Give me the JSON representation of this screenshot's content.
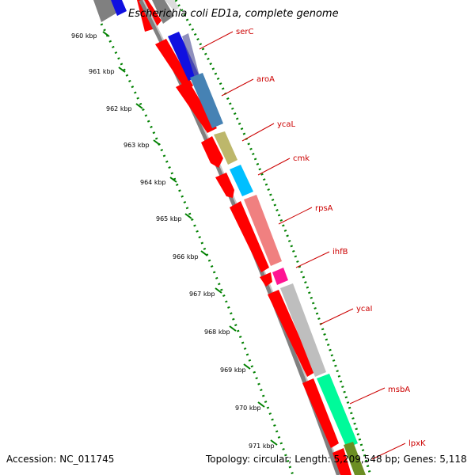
{
  "title": "Escherichia coli ED1a, complete genome",
  "accession": "Accession: NC_011745",
  "topology": "Topology: circular; Length: 5,209,548 bp; Genes: 5,118",
  "ticks": [
    "960 kbp",
    "961 kbp",
    "962 kbp",
    "963 kbp",
    "964 kbp",
    "965 kbp",
    "966 kbp",
    "967 kbp",
    "968 kbp",
    "969 kbp",
    "970 kbp",
    "971 kbp"
  ],
  "genes": [
    {
      "name": "serC",
      "color": "#ff0000",
      "cog_color": "#1010e0"
    },
    {
      "name": "aroA",
      "color": "#ff0000",
      "cog_color": "#4682b4"
    },
    {
      "name": "ycaL",
      "color": "#ff0000",
      "cog_color": "#bdb76b"
    },
    {
      "name": "cmk",
      "color": "#ff0000",
      "cog_color": "#00bfff"
    },
    {
      "name": "rpsA",
      "color": "#ff0000",
      "cog_color": "#f08080"
    },
    {
      "name": "ihfB",
      "color": "#ff0000",
      "cog_color": "#ff1493"
    },
    {
      "name": "ycaI",
      "color": "#ff0000",
      "cog_color": "#bebebe"
    },
    {
      "name": "msbA",
      "color": "#ff0000",
      "cog_color": "#00fa9a"
    },
    {
      "name": "lpxK",
      "color": "#ff0000",
      "cog_color": "#6b8e23"
    }
  ],
  "colors": {
    "label": "#cc0000",
    "tick": "#008000",
    "backbone": "#808080"
  }
}
